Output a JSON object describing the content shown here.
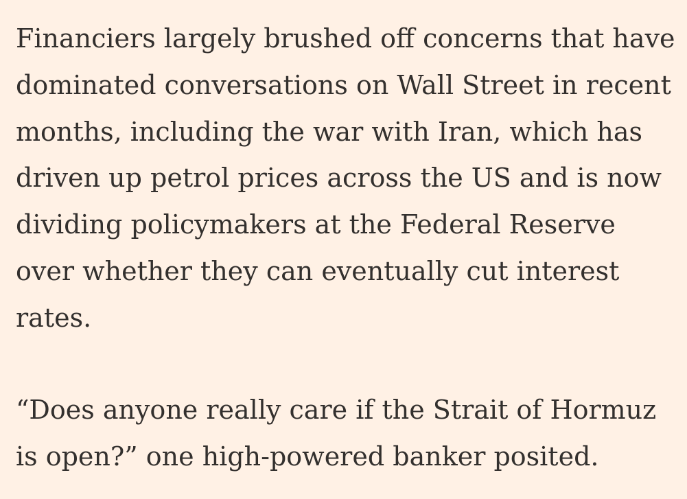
{
  "article": {
    "paragraphs": [
      {
        "lines": [
          "Financiers largely brushed off concerns that have",
          "dominated conversations on Wall Street in recent",
          "months, including the war with Iran, which has",
          "driven up petrol prices across the US and is now",
          "dividing policymakers at the Federal Reserve",
          "over whether they can eventually cut interest",
          "rates."
        ]
      },
      {
        "lines": [
          "“Does anyone really care if the Strait of Hormuz",
          "is open?” one high-powered banker posited."
        ]
      }
    ]
  },
  "colors": {
    "background": "#fff1e5",
    "text": "#33302e"
  }
}
